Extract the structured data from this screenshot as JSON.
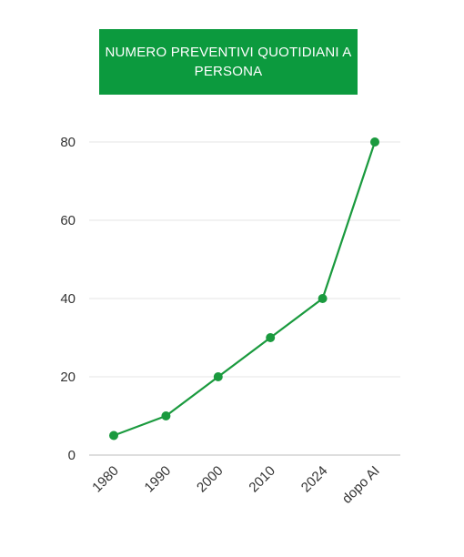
{
  "chart_data": {
    "type": "line",
    "title": "NUMERO PREVENTIVI QUOTIDIANI A PERSONA",
    "categories": [
      "1980",
      "1990",
      "2000",
      "2010",
      "2024",
      "dopo AI"
    ],
    "series": [
      {
        "values": [
          5,
          10,
          20,
          30,
          40,
          80
        ]
      }
    ],
    "yticks": [
      "0",
      "20",
      "40",
      "60",
      "80"
    ],
    "ylim": [
      0,
      80
    ],
    "grid": true,
    "legend": "none",
    "colors": {
      "line": "#1a9a3e",
      "title_bg": "#0c9a3e",
      "title_text": "#ffffff",
      "grid": "#e6e6e6",
      "axis": "#bdbdbd"
    }
  }
}
